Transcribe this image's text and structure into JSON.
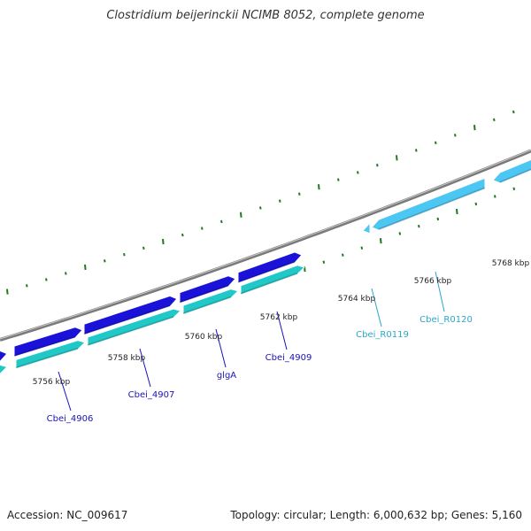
{
  "title": "Clostridium beijerinckii NCIMB 8052, complete genome",
  "footer": {
    "accession": "Accession: NC_009617",
    "summary": "Topology: circular; Length: 6,000,632 bp; Genes: 5,160"
  },
  "colors": {
    "background": "#ffffff",
    "backbone": "#7a7a7a",
    "cds_blue": "#1a12d9",
    "cds_teal": "#20c8c8",
    "rna_light": "#4cc6f2",
    "tick": "#1f7a1f",
    "gene_label": "#1a12b8",
    "rna_label": "#2aa6c8"
  },
  "axis": {
    "unit": "kbp",
    "ticks": [
      {
        "label": "5756 kbp"
      },
      {
        "label": "5758 kbp"
      },
      {
        "label": "5760 kbp"
      },
      {
        "label": "5762 kbp"
      },
      {
        "label": "5764 kbp"
      },
      {
        "label": "5766 kbp"
      },
      {
        "label": "5768 kbp"
      }
    ]
  },
  "features": [
    {
      "name": "Cbei_4906",
      "type": "CDS",
      "strand": "+"
    },
    {
      "name": "Cbei_4907",
      "type": "CDS",
      "strand": "+"
    },
    {
      "name": "glgA",
      "type": "CDS",
      "strand": "+"
    },
    {
      "name": "Cbei_4909",
      "type": "CDS",
      "strand": "+"
    },
    {
      "name": "Cbei_R0119",
      "type": "RNA",
      "strand": "-"
    },
    {
      "name": "Cbei_R0120",
      "type": "RNA",
      "strand": "-"
    }
  ]
}
